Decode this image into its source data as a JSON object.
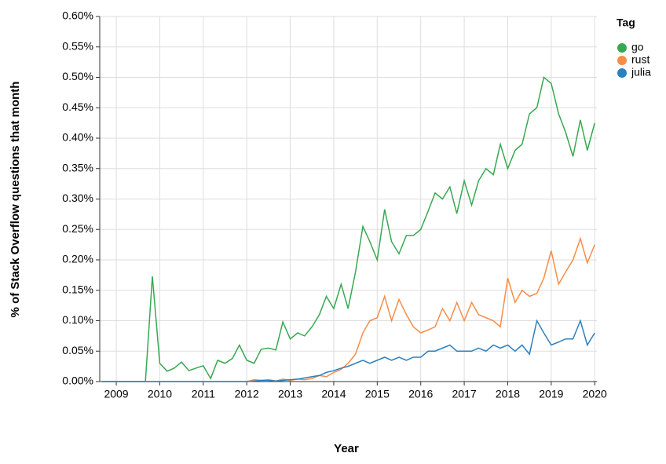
{
  "chart_data": {
    "type": "line",
    "xlabel": "Year",
    "ylabel": "% of Stack Overflow questions that month",
    "legend_title": "Tag",
    "legend": "right",
    "grid": true,
    "xlim": [
      2008.62,
      2020.05
    ],
    "xticks": [
      2009,
      2010,
      2011,
      2012,
      2013,
      2014,
      2015,
      2016,
      2017,
      2018,
      2019,
      2020
    ],
    "ylim": [
      0,
      0.6
    ],
    "yticks": [
      {
        "value": 0,
        "label": "0.00%"
      },
      {
        "value": 0.05,
        "label": "0.05%"
      },
      {
        "value": 0.1,
        "label": "0.10%"
      },
      {
        "value": 0.15,
        "label": "0.15%"
      },
      {
        "value": 0.2,
        "label": "0.20%"
      },
      {
        "value": 0.25,
        "label": "0.25%"
      },
      {
        "value": 0.3,
        "label": "0.30%"
      },
      {
        "value": 0.35,
        "label": "0.35%"
      },
      {
        "value": 0.4,
        "label": "0.40%"
      },
      {
        "value": 0.45,
        "label": "0.45%"
      },
      {
        "value": 0.5,
        "label": "0.50%"
      },
      {
        "value": 0.55,
        "label": "0.55%"
      },
      {
        "value": 0.6,
        "label": "0.60%"
      }
    ],
    "x": [
      2008.67,
      2008.83,
      2009,
      2009.17,
      2009.33,
      2009.5,
      2009.67,
      2009.83,
      2010,
      2010.17,
      2010.33,
      2010.5,
      2010.67,
      2010.83,
      2011,
      2011.17,
      2011.33,
      2011.5,
      2011.67,
      2011.83,
      2012,
      2012.17,
      2012.33,
      2012.5,
      2012.67,
      2012.83,
      2013,
      2013.17,
      2013.33,
      2013.5,
      2013.67,
      2013.83,
      2014,
      2014.17,
      2014.33,
      2014.5,
      2014.67,
      2014.83,
      2015,
      2015.17,
      2015.33,
      2015.5,
      2015.67,
      2015.83,
      2016,
      2016.17,
      2016.33,
      2016.5,
      2016.67,
      2016.83,
      2017,
      2017.17,
      2017.33,
      2017.5,
      2017.67,
      2017.83,
      2018,
      2018.17,
      2018.33,
      2018.5,
      2018.67,
      2018.83,
      2019,
      2019.17,
      2019.33,
      2019.5,
      2019.67,
      2019.83,
      2020
    ],
    "series": [
      {
        "name": "go",
        "color": "#37a852",
        "values": [
          0,
          0,
          0,
          0,
          0,
          0,
          0,
          0.173,
          0.03,
          0.017,
          0.022,
          0.032,
          0.018,
          0.022,
          0.026,
          0.005,
          0.035,
          0.03,
          0.038,
          0.06,
          0.035,
          0.03,
          0.053,
          0.055,
          0.052,
          0.098,
          0.07,
          0.08,
          0.075,
          0.09,
          0.11,
          0.14,
          0.12,
          0.16,
          0.12,
          0.18,
          0.255,
          0.23,
          0.2,
          0.283,
          0.23,
          0.21,
          0.24,
          0.24,
          0.25,
          0.28,
          0.31,
          0.3,
          0.32,
          0.276,
          0.33,
          0.29,
          0.33,
          0.35,
          0.34,
          0.39,
          0.35,
          0.38,
          0.39,
          0.44,
          0.45,
          0.5,
          0.49,
          0.44,
          0.41,
          0.37,
          0.43,
          0.38,
          0.425
        ]
      },
      {
        "name": "rust",
        "color": "#f98d45",
        "values": [
          0,
          0,
          0,
          0,
          0,
          0,
          0,
          0,
          0,
          0,
          0,
          0,
          0,
          0,
          0,
          0,
          0,
          0,
          0,
          0,
          0,
          0.003,
          0.002,
          0.003,
          0.001,
          0.004,
          0.002,
          0.004,
          0.003,
          0.005,
          0.01,
          0.008,
          0.015,
          0.02,
          0.03,
          0.045,
          0.08,
          0.1,
          0.105,
          0.14,
          0.1,
          0.135,
          0.11,
          0.09,
          0.08,
          0.085,
          0.09,
          0.12,
          0.1,
          0.13,
          0.1,
          0.13,
          0.11,
          0.105,
          0.1,
          0.09,
          0.17,
          0.13,
          0.15,
          0.14,
          0.145,
          0.17,
          0.215,
          0.16,
          0.18,
          0.2,
          0.235,
          0.195,
          0.225
        ]
      },
      {
        "name": "julia",
        "color": "#2a81c0",
        "values": [
          0,
          0,
          0,
          0,
          0,
          0,
          0,
          0,
          0,
          0,
          0,
          0,
          0,
          0,
          0,
          0,
          0,
          0,
          0,
          0,
          0,
          0.001,
          0.002,
          0.002,
          0.001,
          0.002,
          0.003,
          0.004,
          0.006,
          0.008,
          0.01,
          0.015,
          0.018,
          0.022,
          0.025,
          0.03,
          0.035,
          0.03,
          0.035,
          0.04,
          0.035,
          0.04,
          0.035,
          0.04,
          0.04,
          0.05,
          0.05,
          0.055,
          0.06,
          0.05,
          0.05,
          0.05,
          0.055,
          0.05,
          0.06,
          0.055,
          0.06,
          0.05,
          0.06,
          0.045,
          0.1,
          0.08,
          0.06,
          0.065,
          0.07,
          0.07,
          0.1,
          0.06,
          0.08
        ]
      }
    ]
  }
}
